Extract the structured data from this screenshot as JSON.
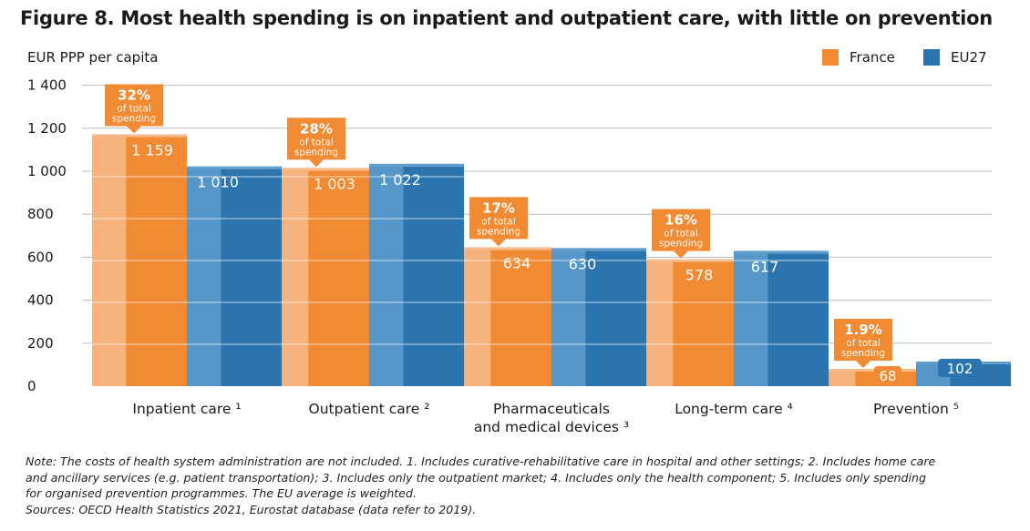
{
  "title": "Figure 8. Most health spending is on inpatient and outpatient care, with little on prevention",
  "colors": {
    "france": "#f08a33",
    "france_light": "#f6b98a",
    "eu": "#2b74ad",
    "eu_light": "#5e9ccd",
    "gridline": "#bdbdbd",
    "callout": "#f08a33"
  },
  "chart_data": {
    "type": "bar",
    "ylabel": "EUR PPP per capita",
    "ylim": [
      0,
      1400
    ],
    "yticks": [
      0,
      200,
      400,
      600,
      800,
      1000,
      1200,
      1400
    ],
    "ytick_labels": [
      "0",
      "200",
      "400",
      "600",
      "800",
      "1 000",
      "1 200",
      "1 400"
    ],
    "categories": [
      {
        "line1": "Inpatient care ¹",
        "line2": ""
      },
      {
        "line1": "Outpatient care ²",
        "line2": ""
      },
      {
        "line1": "Pharmaceuticals",
        "line2": "and medical devices ³"
      },
      {
        "line1": "Long-term care ⁴",
        "line2": ""
      },
      {
        "line1": "Prevention ⁵",
        "line2": ""
      }
    ],
    "series": [
      {
        "name": "France",
        "values": [
          1159,
          1003,
          634,
          578,
          68
        ],
        "labels": [
          "1 159",
          "1 003",
          "634",
          "578",
          "68"
        ]
      },
      {
        "name": "EU27",
        "values": [
          1010,
          1022,
          630,
          617,
          102
        ],
        "labels": [
          "1 010",
          "1 022",
          "630",
          "617",
          "102"
        ]
      }
    ],
    "annotations": [
      {
        "pct": "32%",
        "line1": "of total",
        "line2": "spending"
      },
      {
        "pct": "28%",
        "line1": "of total",
        "line2": "spending"
      },
      {
        "pct": "17%",
        "line1": "of total",
        "line2": "spending"
      },
      {
        "pct": "16%",
        "line1": "of total",
        "line2": "spending"
      },
      {
        "pct": "1.9%",
        "line1": "of total",
        "line2": "spending"
      }
    ],
    "legend": [
      "France",
      "EU27"
    ],
    "grid": true
  },
  "notes": [
    "Note: The costs of health system administration are not included. 1. Includes curative-rehabilitative care in hospital and other settings; 2. Includes home care",
    "and ancillary services (e.g. patient transportation); 3. Includes only the outpatient market; 4. Includes only the health component; 5. Includes only spending",
    "for organised prevention programmes. The EU average is weighted.",
    "Sources: OECD Health Statistics 2021, Eurostat database (data refer to 2019)."
  ]
}
